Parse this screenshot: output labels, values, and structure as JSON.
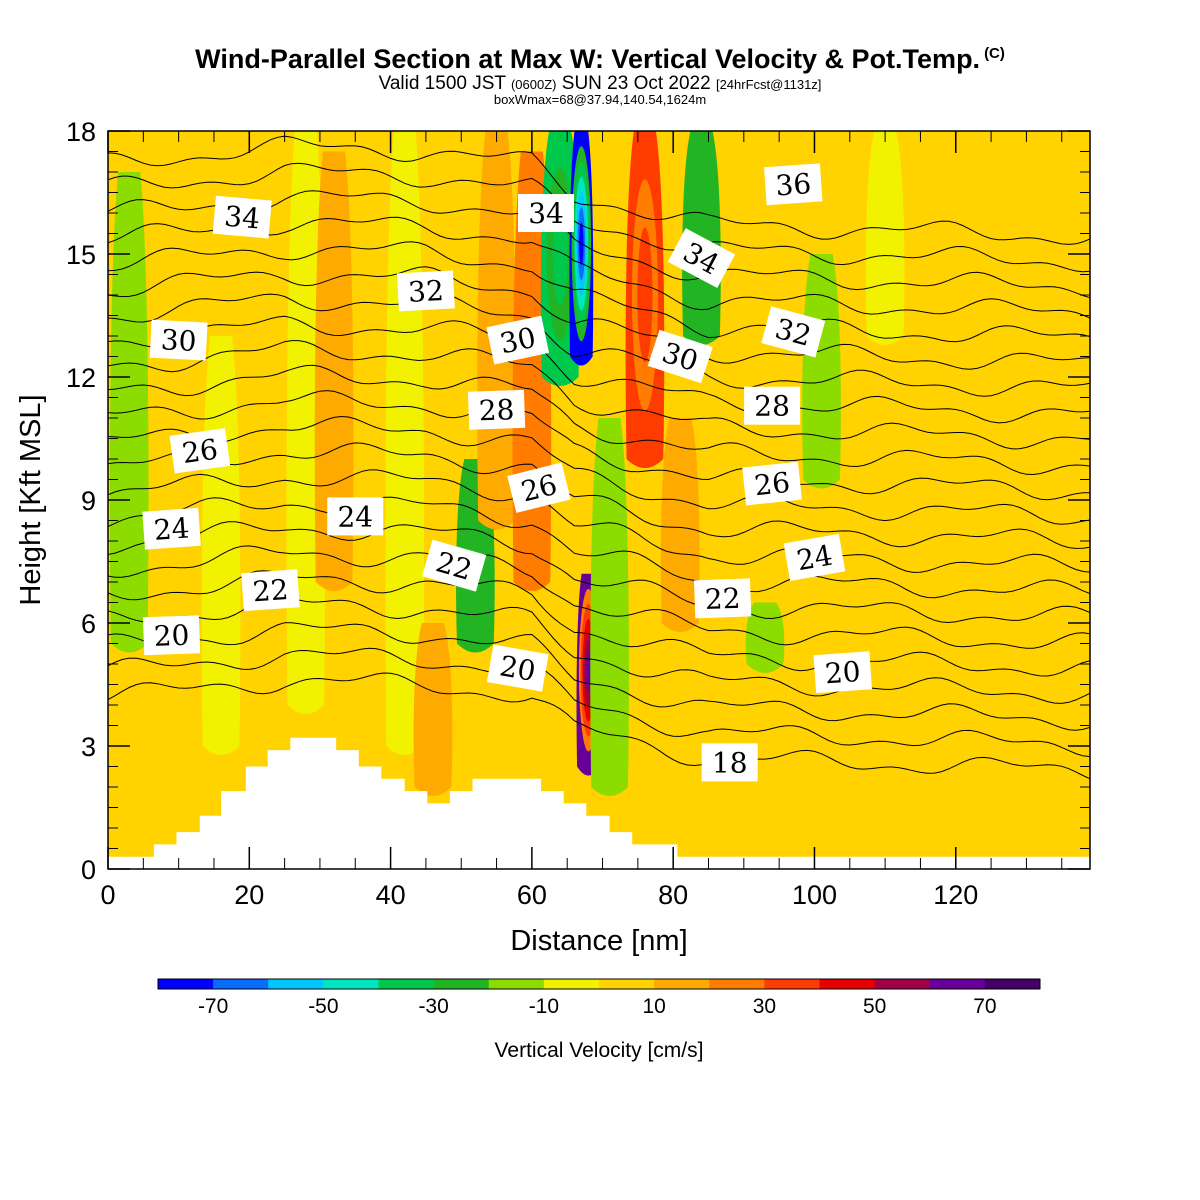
{
  "header": {
    "title": "Wind-Parallel Section at Max W: Vertical Velocity & Pot.Temp.",
    "copyright": "(C)",
    "valid_prefix": "Valid 1500 JST",
    "utc": "(0600Z)",
    "valid_date": "SUN 23 Oct 2022",
    "fcst": "[24hrFcst@1131z]",
    "box": "boxWmax=68@37.94,140.54,1624m"
  },
  "chart_data": {
    "type": "heatmap",
    "xlabel": "Distance [nm]",
    "ylabel": "Height [Kft MSL]",
    "xlim": [
      0,
      139
    ],
    "ylim": [
      0,
      18
    ],
    "xticks": [
      0,
      20,
      40,
      60,
      80,
      100,
      120
    ],
    "yticks": [
      0,
      3,
      6,
      9,
      12,
      15,
      18
    ],
    "colorbar": {
      "label": "Vertical Velocity [cm/s]",
      "tick_values": [
        -70,
        -50,
        -30,
        -10,
        10,
        30,
        50,
        70
      ],
      "boundaries": [
        -80,
        -70,
        -60,
        -50,
        -40,
        -30,
        -20,
        -10,
        0,
        10,
        20,
        30,
        40,
        50,
        60,
        70,
        80
      ],
      "colors": [
        "#0000ff",
        "#0a6cff",
        "#00c8ff",
        "#00e6c0",
        "#00c84a",
        "#22b422",
        "#8cdc00",
        "#f2f200",
        "#ffd200",
        "#ffaa00",
        "#ff7c00",
        "#ff3c00",
        "#e60000",
        "#a00046",
        "#660099",
        "#440066"
      ]
    },
    "velocity_columns": [
      {
        "x": 3,
        "w": -15,
        "top": 17,
        "bottom": 5.5
      },
      {
        "x": 9,
        "w": 5,
        "top": 11,
        "bottom": 4
      },
      {
        "x": 16,
        "w": -8,
        "top": 13,
        "bottom": 3
      },
      {
        "x": 22,
        "w": 8,
        "top": 17.5,
        "bottom": 8
      },
      {
        "x": 28,
        "w": -4,
        "top": 18,
        "bottom": 4
      },
      {
        "x": 32,
        "w": 18,
        "top": 17.5,
        "bottom": 7
      },
      {
        "x": 38,
        "w": 9,
        "top": 14,
        "bottom": 2.5
      },
      {
        "x": 42,
        "w": -6,
        "top": 18,
        "bottom": 3
      },
      {
        "x": 46,
        "w": 15,
        "top": 6,
        "bottom": 2
      },
      {
        "x": 52,
        "w": -22,
        "top": 10,
        "bottom": 5.5
      },
      {
        "x": 55,
        "w": 14,
        "top": 18,
        "bottom": 8.5
      },
      {
        "x": 60,
        "w": 25,
        "top": 17.5,
        "bottom": 7
      },
      {
        "x": 64,
        "w": -35,
        "top": 18,
        "bottom": 12
      },
      {
        "x": 67,
        "w": -72,
        "top": 18,
        "bottom": 12.5
      },
      {
        "x": 68,
        "w": 68,
        "top": 7.2,
        "bottom": 2.5
      },
      {
        "x": 71,
        "w": -12,
        "top": 11,
        "bottom": 2
      },
      {
        "x": 76,
        "w": 32,
        "top": 18,
        "bottom": 10
      },
      {
        "x": 81,
        "w": 16,
        "top": 11,
        "bottom": 6
      },
      {
        "x": 84,
        "w": -28,
        "top": 18,
        "bottom": 13
      },
      {
        "x": 93,
        "w": -15,
        "top": 6.5,
        "bottom": 5
      },
      {
        "x": 101,
        "w": -18,
        "top": 15,
        "bottom": 9.5
      },
      {
        "x": 110,
        "w": -5,
        "top": 18,
        "bottom": 13
      }
    ],
    "terrain": [
      {
        "x": 0,
        "h": 0.3
      },
      {
        "x": 6.5,
        "h": 0.3
      },
      {
        "x": 6.5,
        "h": 0.6
      },
      {
        "x": 9.7,
        "h": 0.6
      },
      {
        "x": 9.7,
        "h": 0.9
      },
      {
        "x": 13,
        "h": 0.9
      },
      {
        "x": 13,
        "h": 1.3
      },
      {
        "x": 16,
        "h": 1.3
      },
      {
        "x": 16,
        "h": 1.9
      },
      {
        "x": 19.5,
        "h": 1.9
      },
      {
        "x": 19.5,
        "h": 2.5
      },
      {
        "x": 22.6,
        "h": 2.5
      },
      {
        "x": 22.6,
        "h": 2.9
      },
      {
        "x": 25.8,
        "h": 2.9
      },
      {
        "x": 25.8,
        "h": 3.2
      },
      {
        "x": 32.3,
        "h": 3.2
      },
      {
        "x": 32.3,
        "h": 2.9
      },
      {
        "x": 35.5,
        "h": 2.9
      },
      {
        "x": 35.5,
        "h": 2.5
      },
      {
        "x": 38.7,
        "h": 2.5
      },
      {
        "x": 38.7,
        "h": 2.2
      },
      {
        "x": 42,
        "h": 2.2
      },
      {
        "x": 42,
        "h": 1.9
      },
      {
        "x": 45.2,
        "h": 1.9
      },
      {
        "x": 45.2,
        "h": 1.6
      },
      {
        "x": 48.4,
        "h": 1.6
      },
      {
        "x": 48.4,
        "h": 1.9
      },
      {
        "x": 51.6,
        "h": 1.9
      },
      {
        "x": 51.6,
        "h": 2.2
      },
      {
        "x": 61.3,
        "h": 2.2
      },
      {
        "x": 61.3,
        "h": 1.9
      },
      {
        "x": 64.5,
        "h": 1.9
      },
      {
        "x": 64.5,
        "h": 1.6
      },
      {
        "x": 67.7,
        "h": 1.6
      },
      {
        "x": 67.7,
        "h": 1.3
      },
      {
        "x": 71,
        "h": 1.3
      },
      {
        "x": 71,
        "h": 0.9
      },
      {
        "x": 74.2,
        "h": 0.9
      },
      {
        "x": 74.2,
        "h": 0.6
      },
      {
        "x": 80.6,
        "h": 0.6
      },
      {
        "x": 80.6,
        "h": 0.3
      },
      {
        "x": 139,
        "h": 0.3
      }
    ],
    "theta_contours": {
      "levels": [
        18,
        19,
        20,
        21,
        22,
        23,
        24,
        25,
        26,
        27,
        28,
        29,
        30,
        31,
        32,
        33,
        34,
        35,
        36,
        37,
        38,
        39
      ],
      "base_height_at": [
        {
          "x": 0,
          "h": 4.2
        },
        {
          "x": 25,
          "h": 4.6
        },
        {
          "x": 45,
          "h": 4.5
        },
        {
          "x": 60,
          "h": 4.2
        },
        {
          "x": 66,
          "h": 3.4
        },
        {
          "x": 72,
          "h": 3.2
        },
        {
          "x": 85,
          "h": 2.7
        },
        {
          "x": 105,
          "h": 2.6
        },
        {
          "x": 139,
          "h": 2.4
        }
      ],
      "labels": [
        {
          "v": "34",
          "x": 19,
          "h": 15.9,
          "rot": 5
        },
        {
          "v": "32",
          "x": 45,
          "h": 14.1,
          "rot": -3
        },
        {
          "v": "30",
          "x": 10,
          "h": 12.9,
          "rot": 3
        },
        {
          "v": "30",
          "x": 58,
          "h": 12.9,
          "rot": -12
        },
        {
          "v": "34",
          "x": 62,
          "h": 16.0,
          "rot": 0
        },
        {
          "v": "34",
          "x": 84,
          "h": 14.9,
          "rot": 28
        },
        {
          "v": "36",
          "x": 97,
          "h": 16.7,
          "rot": -4
        },
        {
          "v": "30",
          "x": 81,
          "h": 12.5,
          "rot": 18
        },
        {
          "v": "32",
          "x": 97,
          "h": 13.1,
          "rot": 15
        },
        {
          "v": "28",
          "x": 55,
          "h": 11.2,
          "rot": -2
        },
        {
          "v": "28",
          "x": 94,
          "h": 11.3,
          "rot": 0
        },
        {
          "v": "26",
          "x": 13,
          "h": 10.2,
          "rot": -8
        },
        {
          "v": "26",
          "x": 61,
          "h": 9.3,
          "rot": -14
        },
        {
          "v": "26",
          "x": 94,
          "h": 9.4,
          "rot": -6
        },
        {
          "v": "24",
          "x": 9,
          "h": 8.3,
          "rot": -4
        },
        {
          "v": "24",
          "x": 35,
          "h": 8.6,
          "rot": 0
        },
        {
          "v": "24",
          "x": 100,
          "h": 7.6,
          "rot": -10
        },
        {
          "v": "22",
          "x": 23,
          "h": 6.8,
          "rot": -4
        },
        {
          "v": "22",
          "x": 49,
          "h": 7.4,
          "rot": 16
        },
        {
          "v": "22",
          "x": 87,
          "h": 6.6,
          "rot": -2
        },
        {
          "v": "20",
          "x": 9,
          "h": 5.7,
          "rot": -2
        },
        {
          "v": "20",
          "x": 58,
          "h": 4.9,
          "rot": 10
        },
        {
          "v": "20",
          "x": 104,
          "h": 4.8,
          "rot": -4
        },
        {
          "v": "18",
          "x": 88,
          "h": 2.6,
          "rot": 0
        }
      ]
    }
  }
}
